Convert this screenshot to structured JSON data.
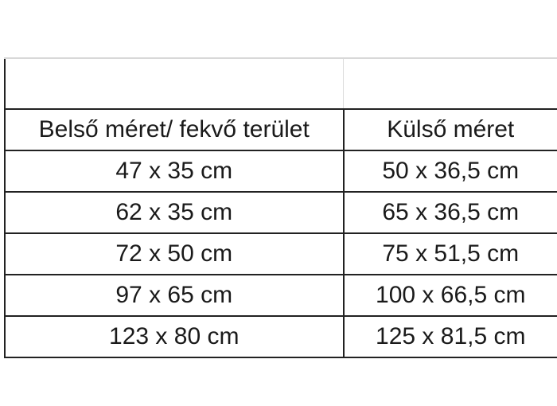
{
  "table": {
    "headers": [
      "Belső méret/ fekvő terület",
      "Külső méret"
    ],
    "rows": [
      [
        "47 x 35 cm",
        "50 x 36,5 cm"
      ],
      [
        "62 x 35 cm",
        "65 x 36,5 cm"
      ],
      [
        "72 x 50 cm",
        "75 x 51,5 cm"
      ],
      [
        "97 x 65 cm",
        "100 x 66,5 cm"
      ],
      [
        "123 x 80 cm",
        "125 x 81,5 cm"
      ]
    ]
  }
}
